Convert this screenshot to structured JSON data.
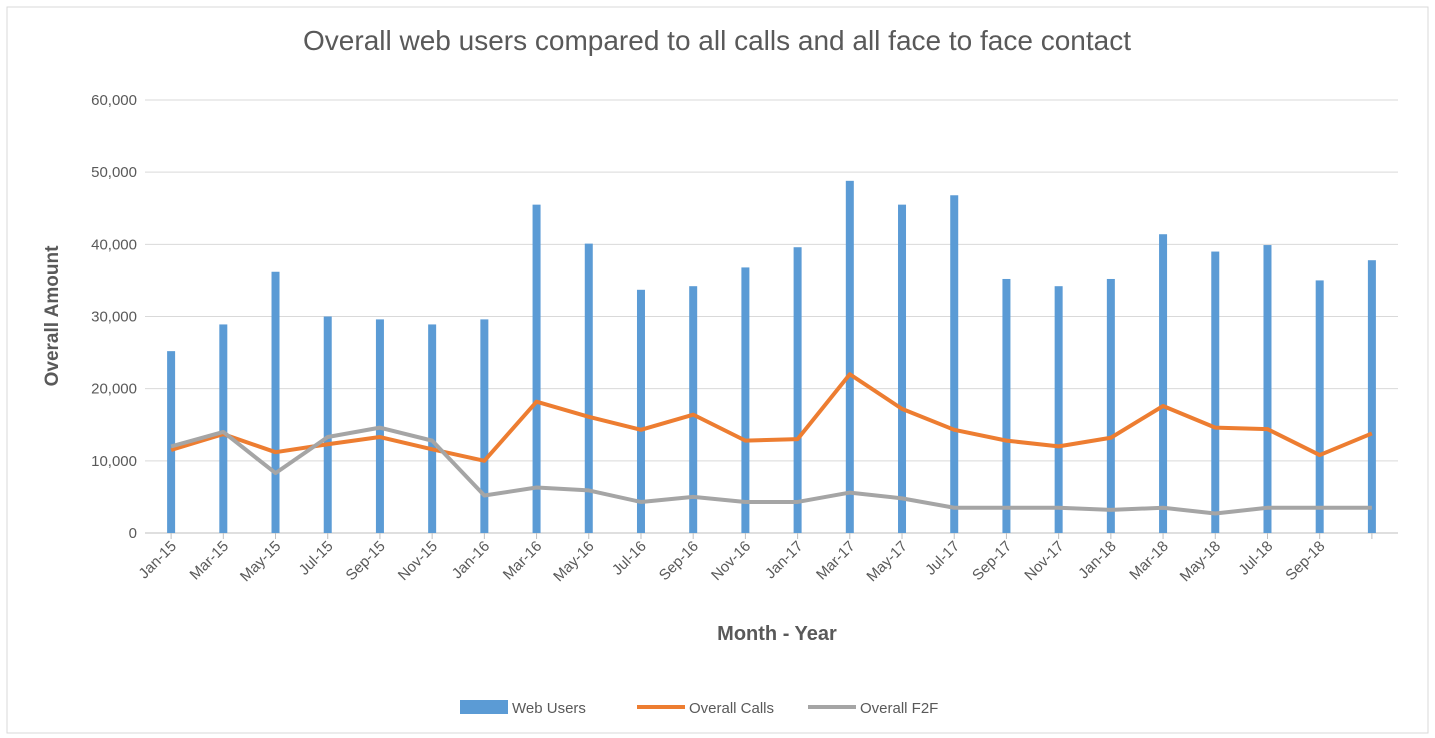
{
  "chart_data": {
    "type": "bar-line",
    "title": "Overall web users compared to all calls and all face to face contact",
    "x_label": "Month - Year",
    "y_label": "Overall Amount",
    "categories": [
      "Jan-15",
      "Mar-15",
      "May-15",
      "Jul-15",
      "Sep-15",
      "Nov-15",
      "Jan-16",
      "Mar-16",
      "May-16",
      "Jul-16",
      "Sep-16",
      "Nov-16",
      "Jan-17",
      "Mar-17",
      "May-17",
      "Jul-17",
      "Sep-17",
      "Nov-17",
      "Jan-18",
      "Mar-18",
      "May-18",
      "Jul-18",
      "Sep-18",
      null
    ],
    "series": [
      {
        "name": "Web Users",
        "kind": "bar",
        "color": "#5b9bd5",
        "values": [
          25200,
          28900,
          36200,
          30000,
          29600,
          28900,
          29600,
          45500,
          40100,
          33700,
          34200,
          36800,
          39600,
          48800,
          45500,
          46800,
          35200,
          34200,
          35200,
          41400,
          39000,
          39900,
          35000,
          37800
        ]
      },
      {
        "name": "Overall Calls",
        "kind": "line",
        "color": "#ed7d31",
        "values": [
          11500,
          13700,
          11200,
          12300,
          13300,
          11600,
          10000,
          18200,
          16100,
          14300,
          16400,
          12800,
          13000,
          22000,
          17200,
          14300,
          12800,
          12000,
          13200,
          17600,
          14600,
          14400,
          10800,
          13800
        ]
      },
      {
        "name": "Overall F2F",
        "kind": "line",
        "color": "#a5a5a5",
        "values": [
          12000,
          14000,
          8300,
          13300,
          14600,
          12800,
          5200,
          6300,
          5900,
          4300,
          5000,
          4300,
          4300,
          5600,
          4800,
          3500,
          3500,
          3500,
          3200,
          3500,
          2700,
          3500,
          3500,
          3500
        ]
      }
    ],
    "ylim": [
      0,
      60000
    ],
    "yticks": [
      0,
      {
        "value": 10000,
        "label": "10,000"
      },
      {
        "value": 20000,
        "label": "20,000"
      },
      {
        "value": 30000,
        "label": "30,000"
      },
      {
        "value": 40000,
        "label": "40,000"
      },
      {
        "value": 50000,
        "label": "50,000"
      },
      {
        "value": 60000,
        "label": "60,000"
      }
    ],
    "grid": true,
    "legend": "bottom"
  }
}
